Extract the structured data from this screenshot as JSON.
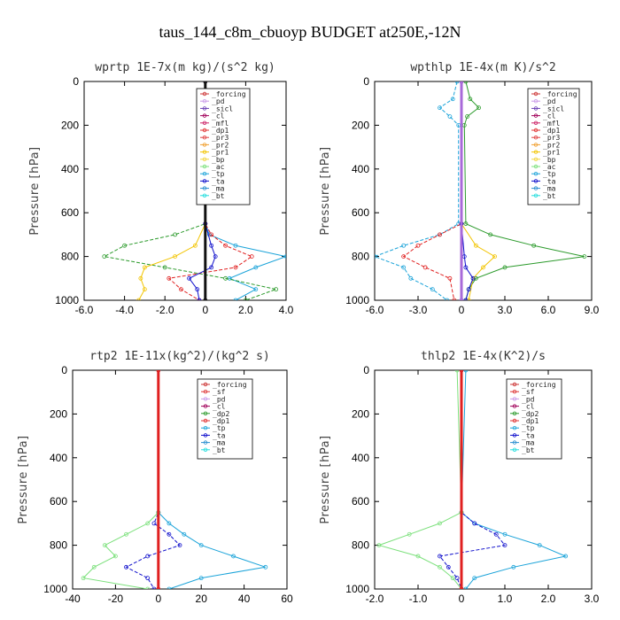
{
  "figure": {
    "title": "taus_144_c8m_cbuoyp  BUDGET at250E,-12N"
  },
  "chart_data": [
    {
      "type": "line",
      "title": "wprtp   1E-7x(m kg)/(s^2 kg)",
      "ylabel": "Pressure [hPa]",
      "xlim": [
        -6,
        4
      ],
      "ylim": [
        1000,
        0
      ],
      "xticks": [
        "-6.0",
        "-4.0",
        "-2.0",
        "0",
        "2.0",
        "4.0"
      ],
      "yticks": [
        "0",
        "200",
        "400",
        "600",
        "800",
        "1000"
      ],
      "xtick_values": [
        -6,
        -4,
        -2,
        0,
        2,
        4
      ],
      "ytick_values": [
        0,
        200,
        400,
        600,
        800,
        1000
      ],
      "legend_position": "top-right",
      "legend": [
        "_forcing",
        "_pd",
        "_sicl",
        "_cl",
        "_mfl",
        "_dp1",
        "_pr3",
        "_pr2",
        "_pr1",
        "_bp",
        "_ac",
        "_tp",
        "_ta",
        "_ma",
        "_bt"
      ],
      "series": [
        {
          "color": "#1aa3d9",
          "y": [
            0,
            650,
            700,
            750,
            800,
            850,
            900,
            950,
            1000
          ],
          "x": [
            0,
            0,
            0.2,
            1.5,
            4,
            2.5,
            1.2,
            2.5,
            1.5
          ]
        },
        {
          "color": "#2b9a2b",
          "y": [
            0,
            650,
            700,
            750,
            800,
            850,
            900,
            950,
            1000
          ],
          "x": [
            0,
            0,
            -1.5,
            -4,
            -5,
            -2,
            1,
            3.5,
            2
          ]
        },
        {
          "color": "#f2c400",
          "y": [
            0,
            650,
            750,
            800,
            850,
            900,
            950,
            1000
          ],
          "x": [
            0,
            0,
            -0.5,
            -1.5,
            -3,
            -3.2,
            -3,
            -3.3
          ]
        },
        {
          "color": "#e02020",
          "y": [
            0,
            650,
            700,
            750,
            800,
            850,
            900,
            950,
            1000
          ],
          "x": [
            0,
            0,
            0.3,
            1,
            2.3,
            1.5,
            -1.8,
            -1.2,
            -0.3
          ]
        },
        {
          "color": "#1010cc",
          "y": [
            0,
            650,
            750,
            800,
            850,
            900,
            950,
            1000
          ],
          "x": [
            0,
            0,
            0.3,
            0.5,
            0.3,
            -0.8,
            -0.4,
            -0.3
          ]
        },
        {
          "color": "#111111",
          "y": [
            0,
            1000
          ],
          "x": [
            0,
            0
          ]
        }
      ]
    },
    {
      "type": "line",
      "title": "wpthlp   1E-4x(m K)/s^2",
      "ylabel": "Pressure [hPa]",
      "xlim": [
        -6,
        9
      ],
      "ylim": [
        1000,
        0
      ],
      "xticks": [
        "-6.0",
        "-3.0",
        "0",
        "3.0",
        "6.0",
        "9.0"
      ],
      "yticks": [
        "0",
        "200",
        "400",
        "600",
        "800",
        "1000"
      ],
      "xtick_values": [
        -6,
        -3,
        0,
        3,
        6,
        9
      ],
      "ytick_values": [
        0,
        200,
        400,
        600,
        800,
        1000
      ],
      "legend_position": "top-right",
      "legend": [
        "_forcing",
        "_pd",
        "_sicl",
        "_cl",
        "_mfl",
        "_dp1",
        "_pr3",
        "_pr2",
        "_pr1",
        "_bp",
        "_ac",
        "_tp",
        "_ta",
        "_ma",
        "_bt"
      ],
      "series": [
        {
          "color": "#2b9a2b",
          "y": [
            0,
            80,
            120,
            160,
            200,
            650,
            700,
            750,
            800,
            850,
            900,
            950,
            1000
          ],
          "x": [
            0.3,
            0.6,
            1.2,
            0.4,
            0.2,
            0.3,
            2,
            5,
            8.5,
            3,
            1,
            0.5,
            0.3
          ]
        },
        {
          "color": "#1aa3d9",
          "y": [
            0,
            80,
            120,
            160,
            200,
            650,
            700,
            750,
            800,
            850,
            900,
            950,
            1000
          ],
          "x": [
            -0.3,
            -0.6,
            -1.5,
            -0.8,
            -0.2,
            -0.2,
            -1.5,
            -4,
            -6,
            -4,
            -3.5,
            -2,
            -1
          ]
        },
        {
          "color": "#f2c400",
          "y": [
            0,
            650,
            750,
            800,
            850,
            900,
            1000
          ],
          "x": [
            0,
            0,
            1,
            2.3,
            1.5,
            0.8,
            0.5
          ]
        },
        {
          "color": "#e02020",
          "y": [
            0,
            650,
            700,
            750,
            800,
            850,
            900,
            1000
          ],
          "x": [
            0,
            0,
            -1.5,
            -3,
            -4,
            -2.5,
            -0.8,
            -0.5
          ]
        },
        {
          "color": "#1010cc",
          "y": [
            0,
            650,
            800,
            850,
            900,
            950,
            1000
          ],
          "x": [
            0,
            0,
            0.2,
            0.3,
            0.8,
            0.5,
            0.3
          ]
        },
        {
          "color": "#a86ad9",
          "y": [
            0,
            1000
          ],
          "x": [
            0,
            0
          ]
        }
      ]
    },
    {
      "type": "line",
      "title": "rtp2   1E-11x(kg^2)/(kg^2 s)",
      "ylabel": "Pressure [hPa]",
      "xlim": [
        -40,
        60
      ],
      "ylim": [
        1000,
        0
      ],
      "xticks": [
        "-40",
        "-20",
        "0",
        "20",
        "40",
        "60"
      ],
      "yticks": [
        "0",
        "200",
        "400",
        "600",
        "800",
        "1000"
      ],
      "xtick_values": [
        -40,
        -20,
        0,
        20,
        40,
        60
      ],
      "ytick_values": [
        0,
        200,
        400,
        600,
        800,
        1000
      ],
      "legend_position": "top-right",
      "legend": [
        "_forcing",
        "_sf",
        "_pd",
        "_cl",
        "_dp2",
        "_dp1",
        "_tp",
        "_ta",
        "_ma",
        "_bt"
      ],
      "series": [
        {
          "color": "#1aa3d9",
          "y": [
            0,
            650,
            700,
            750,
            800,
            850,
            900,
            950,
            1000
          ],
          "x": [
            0,
            0,
            5,
            12,
            20,
            35,
            50,
            20,
            5
          ]
        },
        {
          "color": "#1010cc",
          "y": [
            0,
            650,
            700,
            750,
            800,
            850,
            900,
            950,
            1000
          ],
          "x": [
            0,
            0,
            -2,
            5,
            10,
            -5,
            -15,
            -5,
            -2
          ]
        },
        {
          "color": "#7be07b",
          "y": [
            0,
            650,
            700,
            750,
            800,
            850,
            900,
            950,
            1000
          ],
          "x": [
            0,
            0,
            -5,
            -15,
            -25,
            -20,
            -30,
            -35,
            -5
          ]
        },
        {
          "color": "#e02020",
          "y": [
            0,
            1000
          ],
          "x": [
            0,
            0
          ]
        }
      ]
    },
    {
      "type": "line",
      "title": "thlp2   1E-4x(K^2)/s",
      "ylabel": "Pressure [hPa]",
      "xlim": [
        -2,
        3
      ],
      "ylim": [
        1000,
        0
      ],
      "xticks": [
        "-2.0",
        "-1.0",
        "0",
        "1.0",
        "2.0",
        "3.0"
      ],
      "yticks": [
        "0",
        "200",
        "400",
        "600",
        "800",
        "1000"
      ],
      "xtick_values": [
        -2,
        -1,
        0,
        1,
        2,
        3
      ],
      "ytick_values": [
        0,
        200,
        400,
        600,
        800,
        1000
      ],
      "legend_position": "top-right",
      "legend": [
        "_forcing",
        "_sf",
        "_pd",
        "_cl",
        "_dp2",
        "_dp1",
        "_tp",
        "_ta",
        "_ma",
        "_bt"
      ],
      "series": [
        {
          "color": "#1aa3d9",
          "y": [
            0,
            650,
            700,
            750,
            800,
            850,
            900,
            950,
            1000
          ],
          "x": [
            0.1,
            0,
            0.3,
            1,
            1.8,
            2.4,
            1.2,
            0.3,
            0.1
          ]
        },
        {
          "color": "#1010cc",
          "y": [
            0,
            650,
            700,
            750,
            800,
            850,
            900,
            950,
            1000
          ],
          "x": [
            0,
            0,
            0.3,
            0.8,
            1,
            -0.5,
            -0.3,
            -0.1,
            0
          ]
        },
        {
          "color": "#7be07b",
          "y": [
            0,
            650,
            700,
            750,
            800,
            850,
            900,
            950,
            1000
          ],
          "x": [
            -0.1,
            0,
            -0.5,
            -1.2,
            -1.9,
            -1,
            -0.5,
            -0.2,
            0
          ]
        },
        {
          "color": "#e02020",
          "y": [
            0,
            1000
          ],
          "x": [
            0,
            0
          ]
        }
      ]
    }
  ]
}
